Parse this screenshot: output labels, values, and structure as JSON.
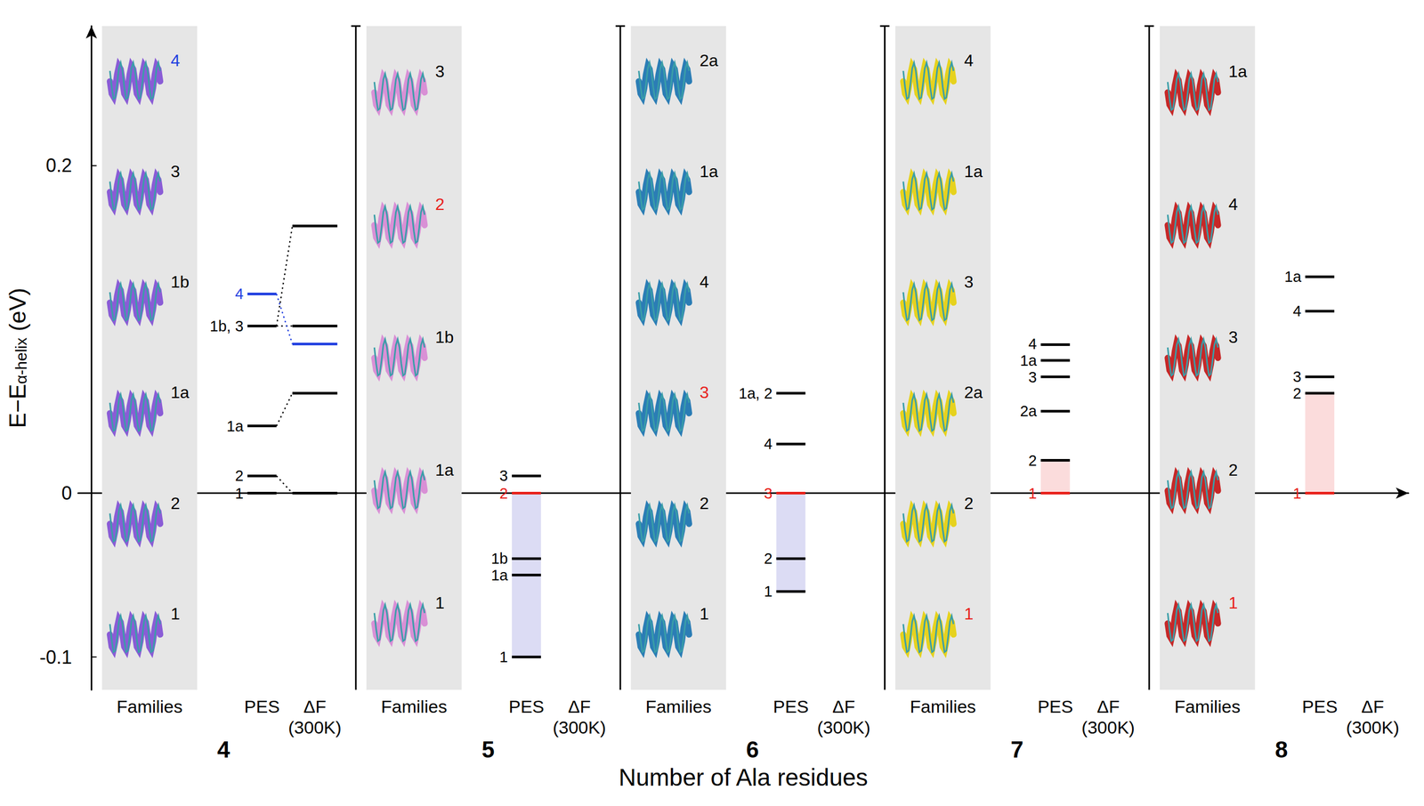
{
  "chart_data": {
    "type": "energy_levels",
    "ylabel": "E−Eα-helix (eV)",
    "ylabel_subscript": "α-helix",
    "xlabel": "Number of Ala residues",
    "ylim": [
      -0.12,
      0.285
    ],
    "yticks": [
      -0.1,
      0,
      0.2
    ],
    "grid": false,
    "columns": [
      "Families",
      "PES",
      "ΔF (300K)"
    ],
    "groups": [
      {
        "name": "4",
        "color": "#8a5cd6",
        "families": [
          {
            "label": "4",
            "color": "#1f3ee0"
          },
          {
            "label": "3"
          },
          {
            "label": "1b"
          },
          {
            "label": "1a"
          },
          {
            "label": "2"
          },
          {
            "label": "1"
          }
        ],
        "pes": [
          {
            "label": "1",
            "value": 0
          },
          {
            "label": "2",
            "value": 0.0105
          },
          {
            "label": "1a",
            "value": 0.041
          },
          {
            "label": "1b, 3",
            "value": 0.102
          },
          {
            "label": "4",
            "value": 0.1215,
            "color": "#1f3ee0"
          }
        ],
        "free_energy": [
          {
            "value": 0,
            "from": [
              "1",
              "2"
            ]
          },
          {
            "value": 0.061,
            "from": [
              "1a"
            ]
          },
          {
            "value": 0.102,
            "from": [
              "1b, 3"
            ]
          },
          {
            "value": 0.091,
            "from": [
              "4"
            ],
            "color": "#1f3ee0"
          },
          {
            "value": 0.163,
            "from": [
              "1b, 3"
            ]
          }
        ]
      },
      {
        "name": "5",
        "color": "#d990d6",
        "families": [
          {
            "label": "3"
          },
          {
            "label": "2",
            "color": "#e8201a"
          },
          {
            "label": "1b"
          },
          {
            "label": "1a"
          },
          {
            "label": "1"
          }
        ],
        "pes": [
          {
            "label": "1",
            "value": -0.1
          },
          {
            "label": "1a",
            "value": -0.05
          },
          {
            "label": "1b",
            "value": -0.04
          },
          {
            "label": "2",
            "value": 0,
            "color": "#e8201a"
          },
          {
            "label": "3",
            "value": 0.0105
          }
        ],
        "band": {
          "range": [
            -0.1,
            0
          ],
          "color": "#dcdcf4"
        }
      },
      {
        "name": "6",
        "color": "#2b7db5",
        "families": [
          {
            "label": "2a"
          },
          {
            "label": "1a"
          },
          {
            "label": "4"
          },
          {
            "label": "3",
            "color": "#e8201a"
          },
          {
            "label": "2"
          },
          {
            "label": "1"
          }
        ],
        "pes": [
          {
            "label": "1",
            "value": -0.06
          },
          {
            "label": "2",
            "value": -0.04
          },
          {
            "label": "3",
            "value": 0,
            "color": "#e8201a"
          },
          {
            "label": "4",
            "value": 0.03
          },
          {
            "label": "1a, 2",
            "value": 0.061
          }
        ],
        "band": {
          "range": [
            -0.06,
            0
          ],
          "color": "#dcdcf4"
        }
      },
      {
        "name": "7",
        "color": "#e6d21e",
        "families": [
          {
            "label": "4"
          },
          {
            "label": "1a"
          },
          {
            "label": "3"
          },
          {
            "label": "2a"
          },
          {
            "label": "2"
          },
          {
            "label": "1",
            "color": "#e8201a"
          }
        ],
        "pes": [
          {
            "label": "1",
            "value": 0,
            "color": "#e8201a"
          },
          {
            "label": "2",
            "value": 0.02
          },
          {
            "label": "2a",
            "value": 0.05
          },
          {
            "label": "3",
            "value": 0.071
          },
          {
            "label": "1a",
            "value": 0.081
          },
          {
            "label": "4",
            "value": 0.0906
          }
        ],
        "band": {
          "range": [
            0,
            0.02
          ],
          "color": "#fbdcdc"
        }
      },
      {
        "name": "8",
        "color": "#c62828",
        "families": [
          {
            "label": "1a"
          },
          {
            "label": "4"
          },
          {
            "label": "3"
          },
          {
            "label": "2"
          },
          {
            "label": "1",
            "color": "#e8201a"
          }
        ],
        "pes": [
          {
            "label": "1",
            "value": 0,
            "color": "#e8201a"
          },
          {
            "label": "2",
            "value": 0.061
          },
          {
            "label": "3",
            "value": 0.071
          },
          {
            "label": "4",
            "value": 0.111
          },
          {
            "label": "1a",
            "value": 0.132
          }
        ],
        "band": {
          "range": [
            0,
            0.061
          ],
          "color": "#fbdcdc"
        }
      }
    ]
  }
}
